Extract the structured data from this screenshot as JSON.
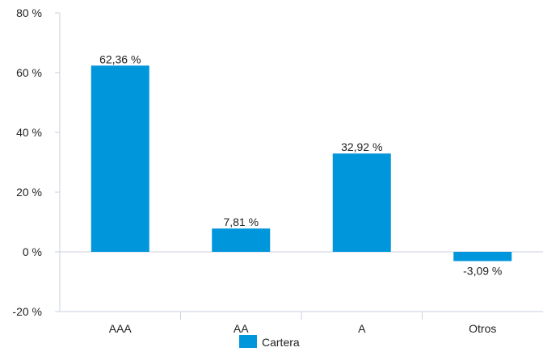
{
  "chart_data": {
    "type": "bar",
    "categories": [
      "AAA",
      "AA",
      "A",
      "Otros"
    ],
    "series": [
      {
        "name": "Cartera",
        "values": [
          62.36,
          7.81,
          32.92,
          -3.09
        ],
        "value_labels": [
          "62,36 %",
          "7,81 %",
          "32,92 %",
          "-3,09 %"
        ],
        "color": "#0096DC"
      }
    ],
    "ylim": [
      -20,
      80
    ],
    "yticks": [
      -20,
      0,
      20,
      40,
      60,
      80
    ],
    "ytick_labels": [
      "-20 %",
      "0 %",
      "20 %",
      "40 %",
      "60 %",
      "80 %"
    ],
    "grid": false,
    "legend_position": "bottom",
    "axis_color": "#C8D2DC"
  }
}
